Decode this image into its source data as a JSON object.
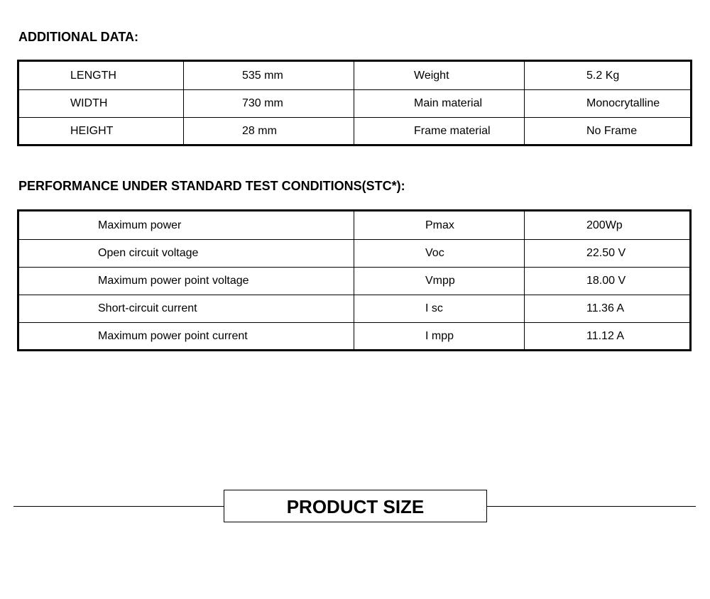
{
  "additional": {
    "title": "ADDITIONAL DATA:",
    "rows": [
      [
        "LENGTH",
        "535 mm",
        "Weight",
        "5.2 Kg"
      ],
      [
        "WIDTH",
        "730 mm",
        "Main material",
        "Monocrytalline"
      ],
      [
        "HEIGHT",
        "28 mm",
        "Frame material",
        "No Frame"
      ]
    ]
  },
  "performance": {
    "title": "PERFORMANCE UNDER STANDARD TEST CONDITIONS(STC*):",
    "rows": [
      [
        "Maximum power",
        "Pmax",
        "200Wp"
      ],
      [
        "Open circuit voltage",
        "Voc",
        "22.50 V"
      ],
      [
        "Maximum power point voltage",
        "Vmpp",
        "18.00 V"
      ],
      [
        "Short-circuit current",
        "I sc",
        "11.36 A"
      ],
      [
        "Maximum power point current",
        "I mpp",
        "11.12 A"
      ]
    ]
  },
  "product_size": {
    "title": "PRODUCT SIZE"
  }
}
